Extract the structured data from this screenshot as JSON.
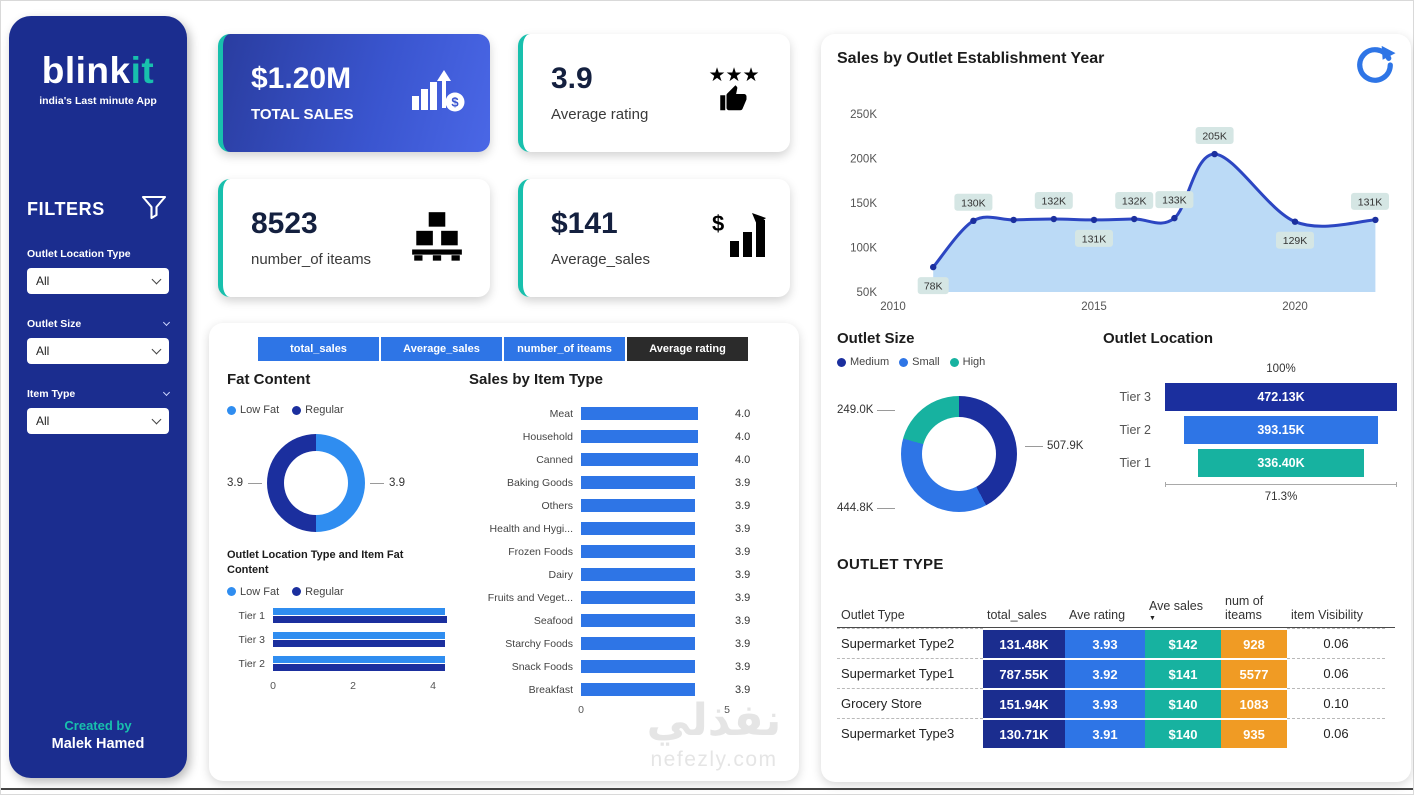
{
  "watermark": {
    "line1": "نفذلي",
    "line2": "nefezly.com"
  },
  "sidebar": {
    "logo_part1": "blink",
    "logo_part2": "it",
    "tagline": "india's Last minute App",
    "filters_title": "FILTERS",
    "filters": [
      {
        "label": "Outlet Location Type",
        "value": "All"
      },
      {
        "label": "Outlet Size",
        "value": "All"
      },
      {
        "label": "Item Type",
        "value": "All"
      }
    ],
    "credit_label": "Created by",
    "credit_name": "Malek Hamed"
  },
  "kpis": [
    {
      "value": "$1.20M",
      "label": "TOTAL SALES"
    },
    {
      "value": "3.9",
      "label": "Average rating"
    },
    {
      "value": "8523",
      "label": "number_of iteams"
    },
    {
      "value": "$141",
      "label": "Average_sales"
    }
  ],
  "tabs": [
    {
      "label": "total_sales",
      "active": false
    },
    {
      "label": "Average_sales",
      "active": false
    },
    {
      "label": "number_of iteams",
      "active": false
    },
    {
      "label": "Average rating",
      "active": true
    }
  ],
  "colors": {
    "navy": "#1b2d8f",
    "blue": "#2e75e6",
    "light_blue": "#2f8df0",
    "teal": "#17b2a0",
    "orange": "#f09b24",
    "area_fill": "#b7d8f6",
    "line": "#2c46c2",
    "dot": "#1b2f9e",
    "chip_bg": "#d5e6e4"
  },
  "chart_data": [
    {
      "name": "fat_content",
      "type": "pie",
      "title": "Fat Content",
      "slices": [
        {
          "label": "Low Fat",
          "value": 3.9,
          "display": "3.9",
          "color": "#2f8df0"
        },
        {
          "label": "Regular",
          "value": 3.9,
          "display": "3.9",
          "color": "#1b2f9e"
        }
      ]
    },
    {
      "name": "outlet_location_fat_content",
      "type": "bar",
      "title": "Outlet Location Type and Item Fat Content",
      "categories": [
        "Tier 1",
        "Tier 3",
        "Tier 2"
      ],
      "series": [
        {
          "name": "Low Fat",
          "color": "#2f8df0",
          "values": [
            4.3,
            4.3,
            4.3
          ]
        },
        {
          "name": "Regular",
          "color": "#1b2f9e",
          "values": [
            4.35,
            4.3,
            4.3
          ]
        }
      ],
      "x_ticks": [
        "0",
        "2",
        "4"
      ],
      "xmax": 4.4
    },
    {
      "name": "sales_by_item_type",
      "type": "bar",
      "title": "Sales by Item Type",
      "categories": [
        "Meat",
        "Household",
        "Canned",
        "Baking Goods",
        "Others",
        "Health and Hygi...",
        "Frozen Foods",
        "Dairy",
        "Fruits and Veget...",
        "Seafood",
        "Starchy Foods",
        "Snack Foods",
        "Breakfast"
      ],
      "values": [
        4.0,
        4.0,
        4.0,
        3.9,
        3.9,
        3.9,
        3.9,
        3.9,
        3.9,
        3.9,
        3.9,
        3.9,
        3.9
      ],
      "labels": [
        "4.0",
        "4.0",
        "4.0",
        "3.9",
        "3.9",
        "3.9",
        "3.9",
        "3.9",
        "3.9",
        "3.9",
        "3.9",
        "3.9",
        "3.9"
      ],
      "x_ticks": [
        "0",
        "5"
      ],
      "xmax": 5
    },
    {
      "name": "sales_by_establishment_year",
      "type": "area",
      "title": "Sales by Outlet Establishment Year",
      "y_ticks": [
        "250K",
        "200K",
        "150K",
        "100K",
        "50K"
      ],
      "y_tick_values": [
        250,
        200,
        150,
        100,
        50
      ],
      "x_ticks": [
        {
          "label": "2010",
          "year": 2010
        },
        {
          "label": "2015",
          "year": 2015
        },
        {
          "label": "2020",
          "year": 2020
        }
      ],
      "ymin": 50,
      "ymax": 250,
      "points": [
        {
          "year": 2011,
          "value": 78,
          "label": "78K",
          "label_pos": "below"
        },
        {
          "year": 2012,
          "value": 130,
          "label": "130K",
          "label_pos": "above"
        },
        {
          "year": 2013,
          "value": 131,
          "label": null,
          "label_pos": null
        },
        {
          "year": 2014,
          "value": 132,
          "label": "132K",
          "label_pos": "above"
        },
        {
          "year": 2015,
          "value": 131,
          "label": "131K",
          "label_pos": "below"
        },
        {
          "year": 2016,
          "value": 132,
          "label": "132K",
          "label_pos": "above"
        },
        {
          "year": 2017,
          "value": 133,
          "label": "133K",
          "label_pos": "above"
        },
        {
          "year": 2018,
          "value": 205,
          "label": "205K",
          "label_pos": "above"
        },
        {
          "year": 2020,
          "value": 129,
          "label": "129K",
          "label_pos": "below"
        },
        {
          "year": 2022,
          "value": 131,
          "label": "131K",
          "label_pos": "above"
        }
      ]
    },
    {
      "name": "outlet_size",
      "type": "pie",
      "title": "Outlet Size",
      "slices": [
        {
          "label": "Medium",
          "value": 507.9,
          "display": "507.9K",
          "color": "#1b2f9e"
        },
        {
          "label": "Small",
          "value": 444.8,
          "display": "444.8K",
          "color": "#2e75e6"
        },
        {
          "label": "High",
          "value": 249.0,
          "display": "249.0K",
          "color": "#17b2a0"
        }
      ]
    },
    {
      "name": "outlet_location",
      "type": "funnel",
      "title": "Outlet Location",
      "top_label": "100%",
      "bottom_label": "71.3%",
      "tiers": [
        {
          "label": "Tier 3",
          "display": "472.13K",
          "pct": 100,
          "color": "#1b2f9e"
        },
        {
          "label": "Tier 2",
          "display": "393.15K",
          "pct": 83.3,
          "color": "#2e75e6"
        },
        {
          "label": "Tier 1",
          "display": "336.40K",
          "pct": 71.3,
          "color": "#17b2a0"
        }
      ]
    },
    {
      "name": "outlet_type_table",
      "type": "table",
      "title": "OUTLET TYPE",
      "columns": [
        "Outlet Type",
        "total_sales",
        "Ave rating",
        "Ave sales",
        "num of iteams",
        "item Visibility"
      ],
      "sorted_column": "Ave sales",
      "rows": [
        [
          "Supermarket Type2",
          "131.48K",
          "3.93",
          "$142",
          "928",
          "0.06"
        ],
        [
          "Supermarket Type1",
          "787.55K",
          "3.92",
          "$141",
          "5577",
          "0.06"
        ],
        [
          "Grocery Store",
          "151.94K",
          "3.93",
          "$140",
          "1083",
          "0.10"
        ],
        [
          "Supermarket Type3",
          "130.71K",
          "3.91",
          "$140",
          "935",
          "0.06"
        ]
      ]
    }
  ]
}
